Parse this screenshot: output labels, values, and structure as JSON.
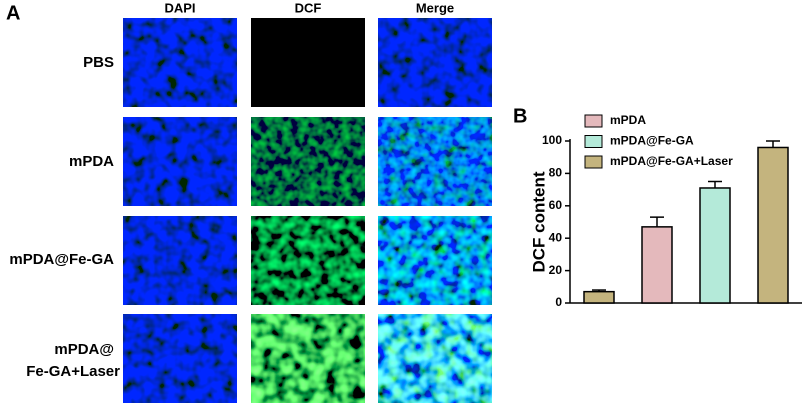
{
  "panelA": {
    "label": "A",
    "columns": [
      "DAPI",
      "DCF",
      "Merge"
    ],
    "rows": [
      [
        "PBS"
      ],
      [
        "mPDA"
      ],
      [
        "mPDA@Fe-GA"
      ],
      [
        "mPDA@",
        "Fe-GA+Laser"
      ]
    ]
  },
  "panelB": {
    "label": "B"
  },
  "chart_data": {
    "type": "bar",
    "ylabel": "DCF content",
    "categories": [
      null,
      null,
      null,
      null
    ],
    "values": [
      7,
      47,
      71,
      96
    ],
    "errors": [
      1,
      6,
      4,
      4
    ],
    "colors": [
      "#c4b47e",
      "#e4b9bc",
      "#b4ead9",
      "#c4b47e"
    ],
    "legend": [
      {
        "name": "mPDA",
        "color": "#e4b9bc"
      },
      {
        "name": "mPDA@Fe-GA",
        "color": "#b4ead9"
      },
      {
        "name": "mPDA@Fe-GA+Laser",
        "color": "#c4b47e"
      }
    ],
    "ylim": [
      0,
      100
    ],
    "yticks": [
      0,
      20,
      40,
      60,
      80,
      100
    ]
  }
}
